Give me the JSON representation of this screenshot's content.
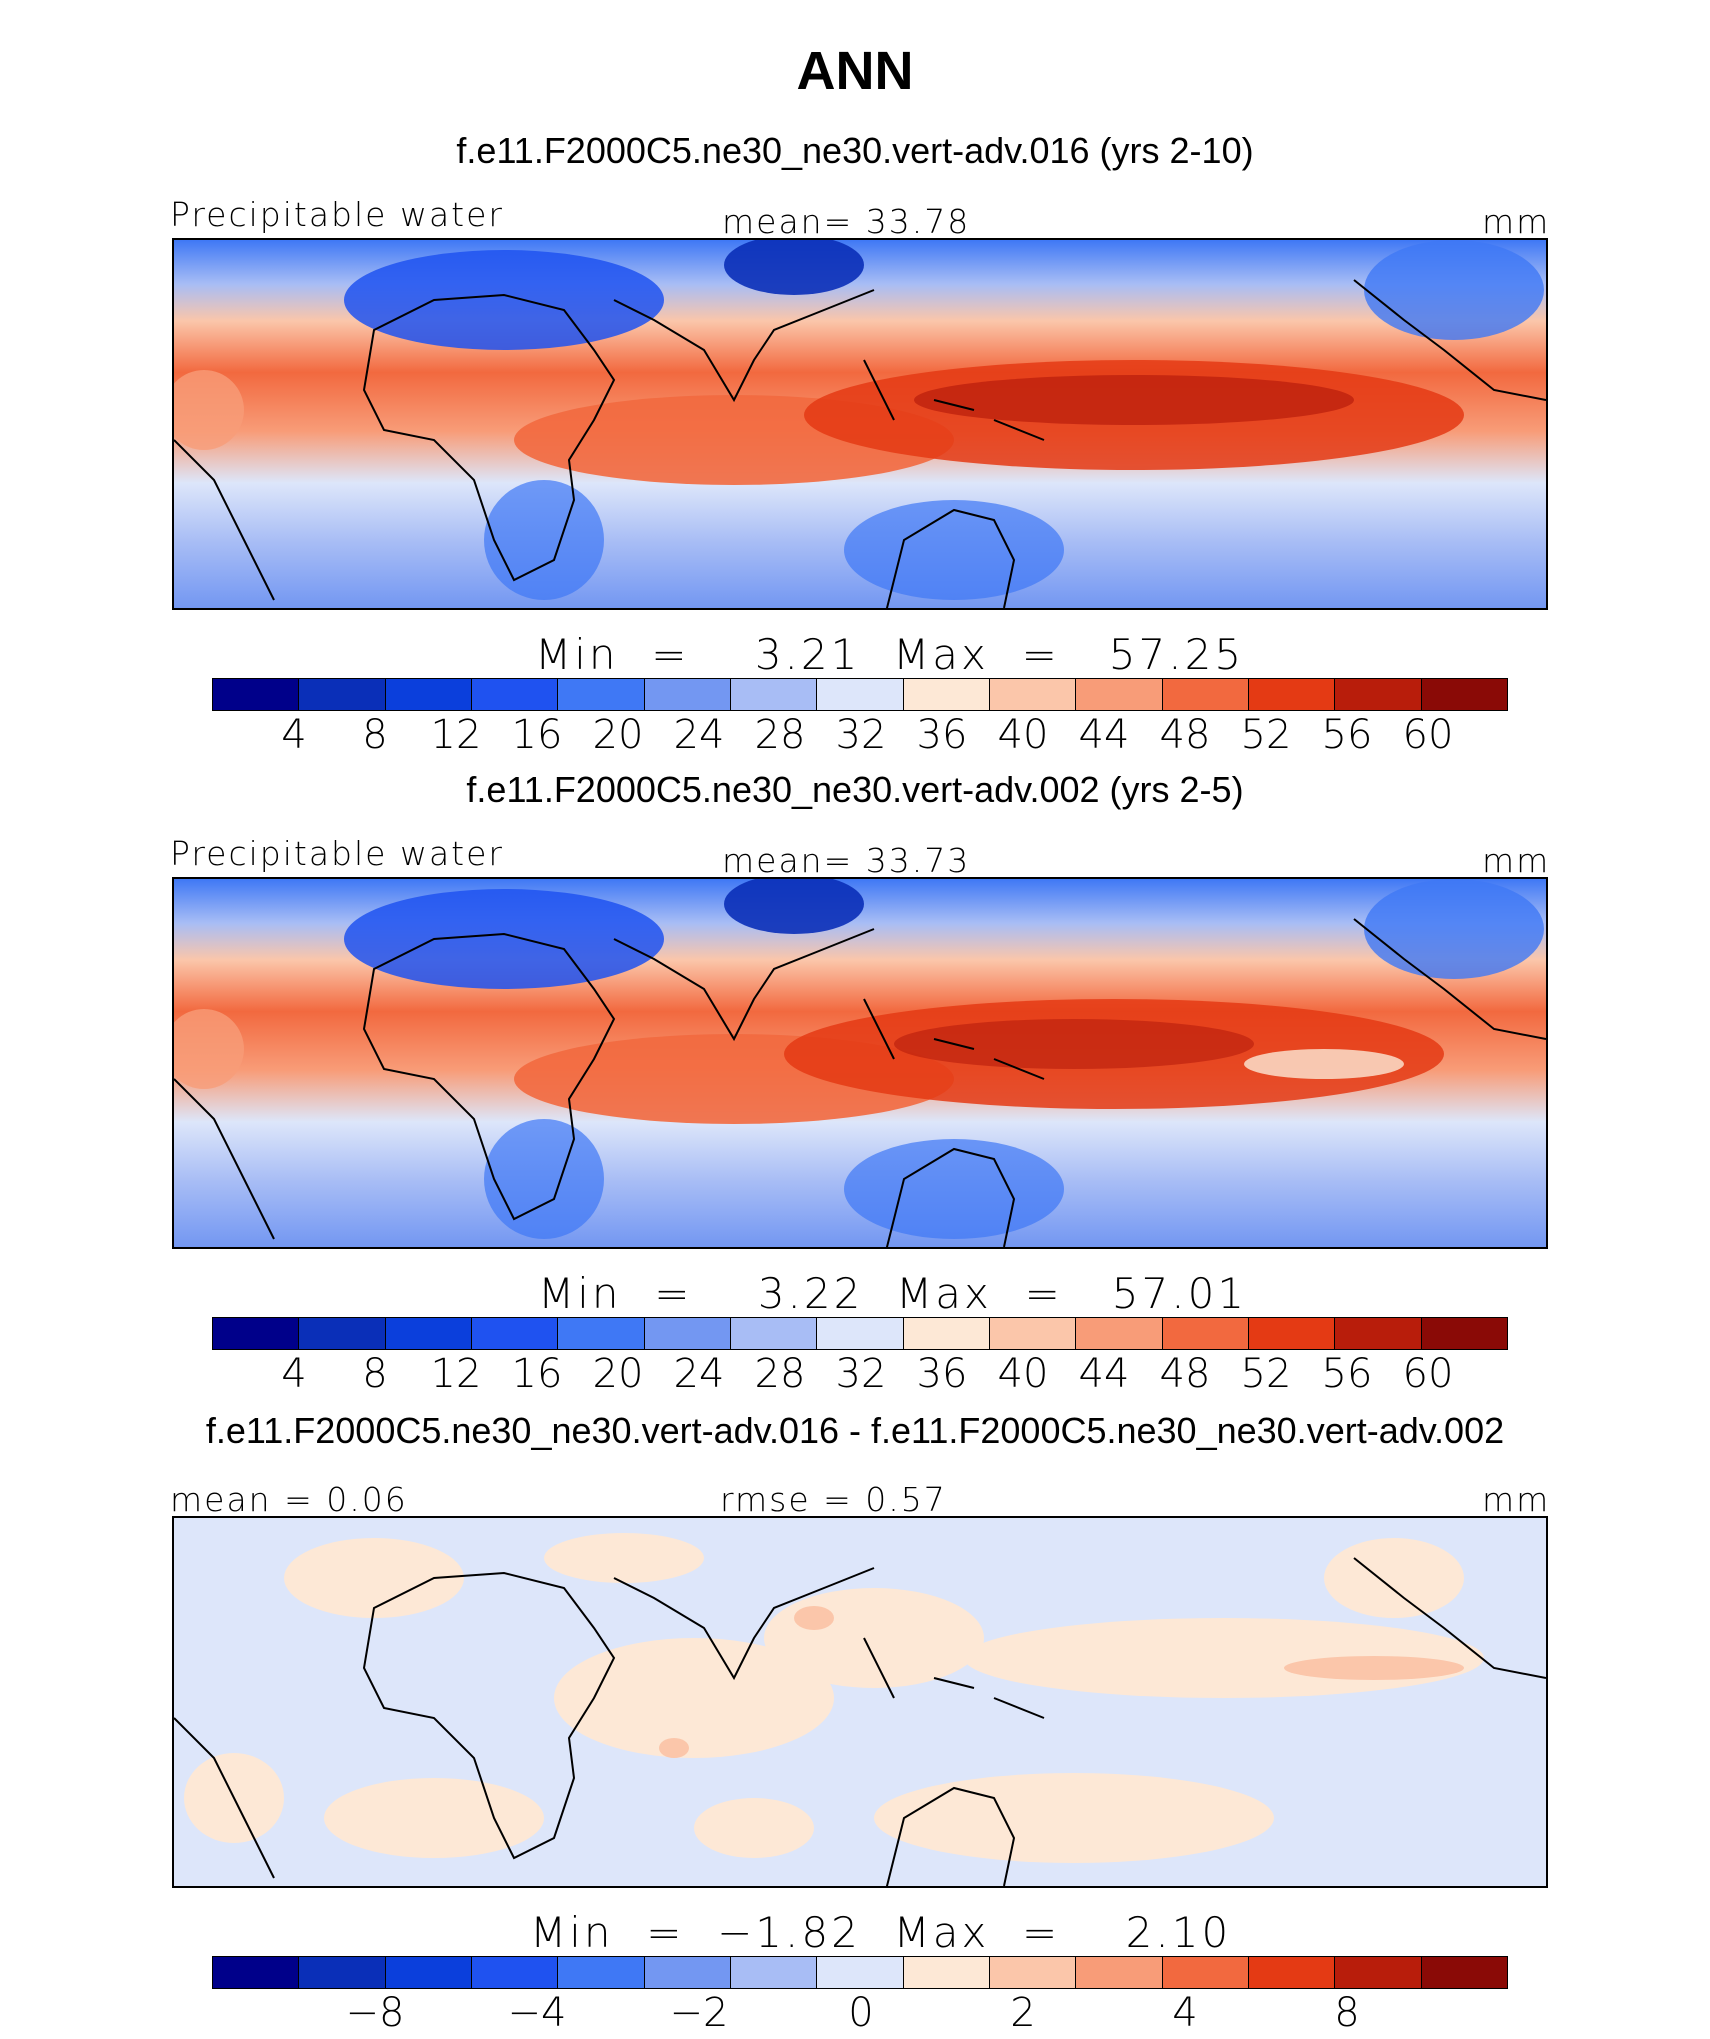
{
  "title": "ANN",
  "panels": [
    {
      "case": "f.e11.F2000C5.ne30_ne30.vert-adv.016 (yrs 2-10)",
      "left_label": "Precipitable water",
      "center_label": "mean=   33.78",
      "units": "mm",
      "minmax": "Min  =    3.21  Max  =   57.25",
      "ticks": [
        "4",
        "8",
        "12",
        "16",
        "20",
        "24",
        "28",
        "32",
        "36",
        "40",
        "44",
        "48",
        "52",
        "56",
        "60"
      ]
    },
    {
      "case": "f.e11.F2000C5.ne30_ne30.vert-adv.002 (yrs 2-5)",
      "left_label": "Precipitable water",
      "center_label": "mean=   33.73",
      "units": "mm",
      "minmax": "Min  =    3.22  Max  =   57.01",
      "ticks": [
        "4",
        "8",
        "12",
        "16",
        "20",
        "24",
        "28",
        "32",
        "36",
        "40",
        "44",
        "48",
        "52",
        "56",
        "60"
      ]
    },
    {
      "case": "f.e11.F2000C5.ne30_ne30.vert-adv.016 - f.e11.F2000C5.ne30_ne30.vert-adv.002",
      "left_label": "mean =    0.06",
      "center_label": "rmse =    0.57",
      "units": "mm",
      "minmax": "Min  =  −1.82  Max  =    2.10",
      "ticks": [
        "−8",
        "−4",
        "−2",
        "0",
        "2",
        "4",
        "8"
      ]
    }
  ],
  "colors": {
    "colorbar": [
      "#00008a",
      "#0a2fb8",
      "#0b3fdc",
      "#1f52f0",
      "#3f78f5",
      "#7397f2",
      "#a8bdf5",
      "#dde6fa",
      "#fde8d6",
      "#fbc6aa",
      "#f89c78",
      "#f2693f",
      "#e43a14",
      "#b81d0b",
      "#8a0a06"
    ]
  }
}
